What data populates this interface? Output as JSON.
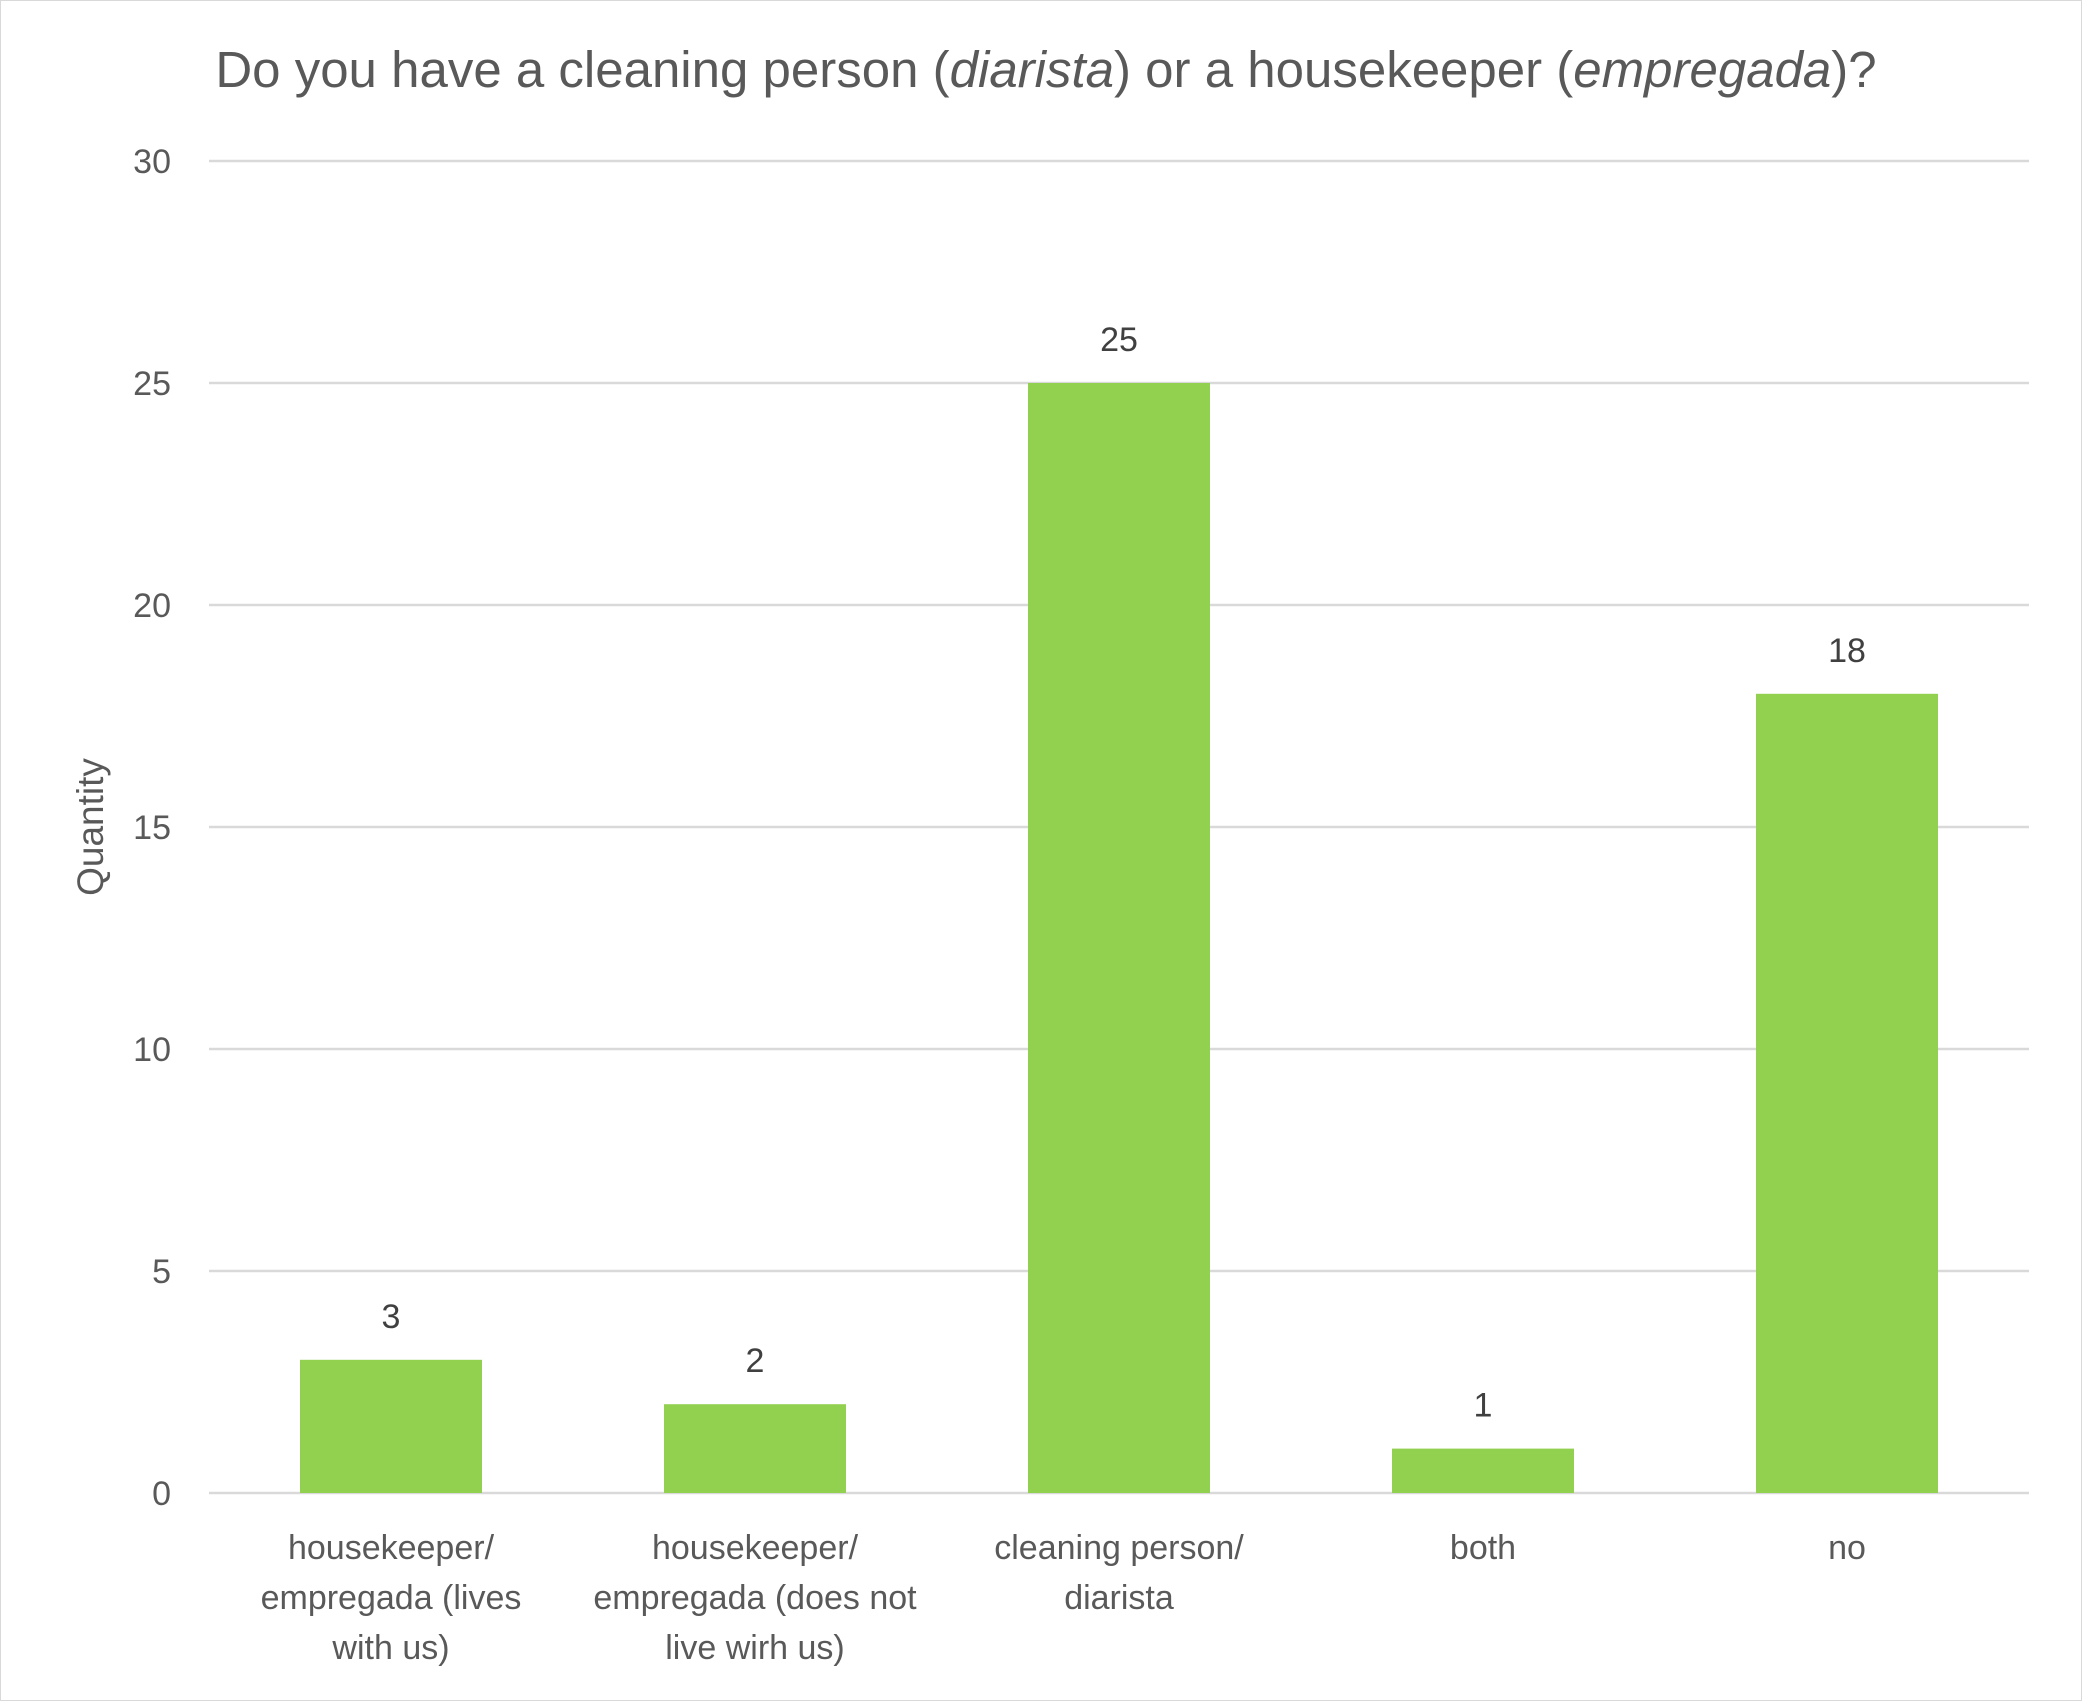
{
  "chart_data": {
    "type": "bar",
    "title_parts": [
      {
        "text": "Do you have a cleaning person (",
        "italic": false
      },
      {
        "text": "diarista",
        "italic": true
      },
      {
        "text": ") or a housekeeper (",
        "italic": false
      },
      {
        "text": "empregada",
        "italic": true
      },
      {
        "text": ")?",
        "italic": false
      }
    ],
    "ylabel": "Quantity",
    "xlabel": "",
    "ylim": [
      0,
      30
    ],
    "ytick_step": 5,
    "yticks": [
      "0",
      "5",
      "10",
      "15",
      "20",
      "25",
      "30"
    ],
    "grid": true,
    "legend": "none",
    "bar_color": "#92d050",
    "categories": [
      [
        "housekeeper/",
        "empregada (lives",
        "with us)"
      ],
      [
        "housekeeper/",
        "empregada (does not",
        "live wirh us)"
      ],
      [
        "cleaning person/",
        "diarista"
      ],
      [
        "both"
      ],
      [
        "no"
      ]
    ],
    "values": [
      3,
      2,
      25,
      1,
      18
    ],
    "data_labels": [
      "3",
      "2",
      "25",
      "1",
      "18"
    ]
  }
}
